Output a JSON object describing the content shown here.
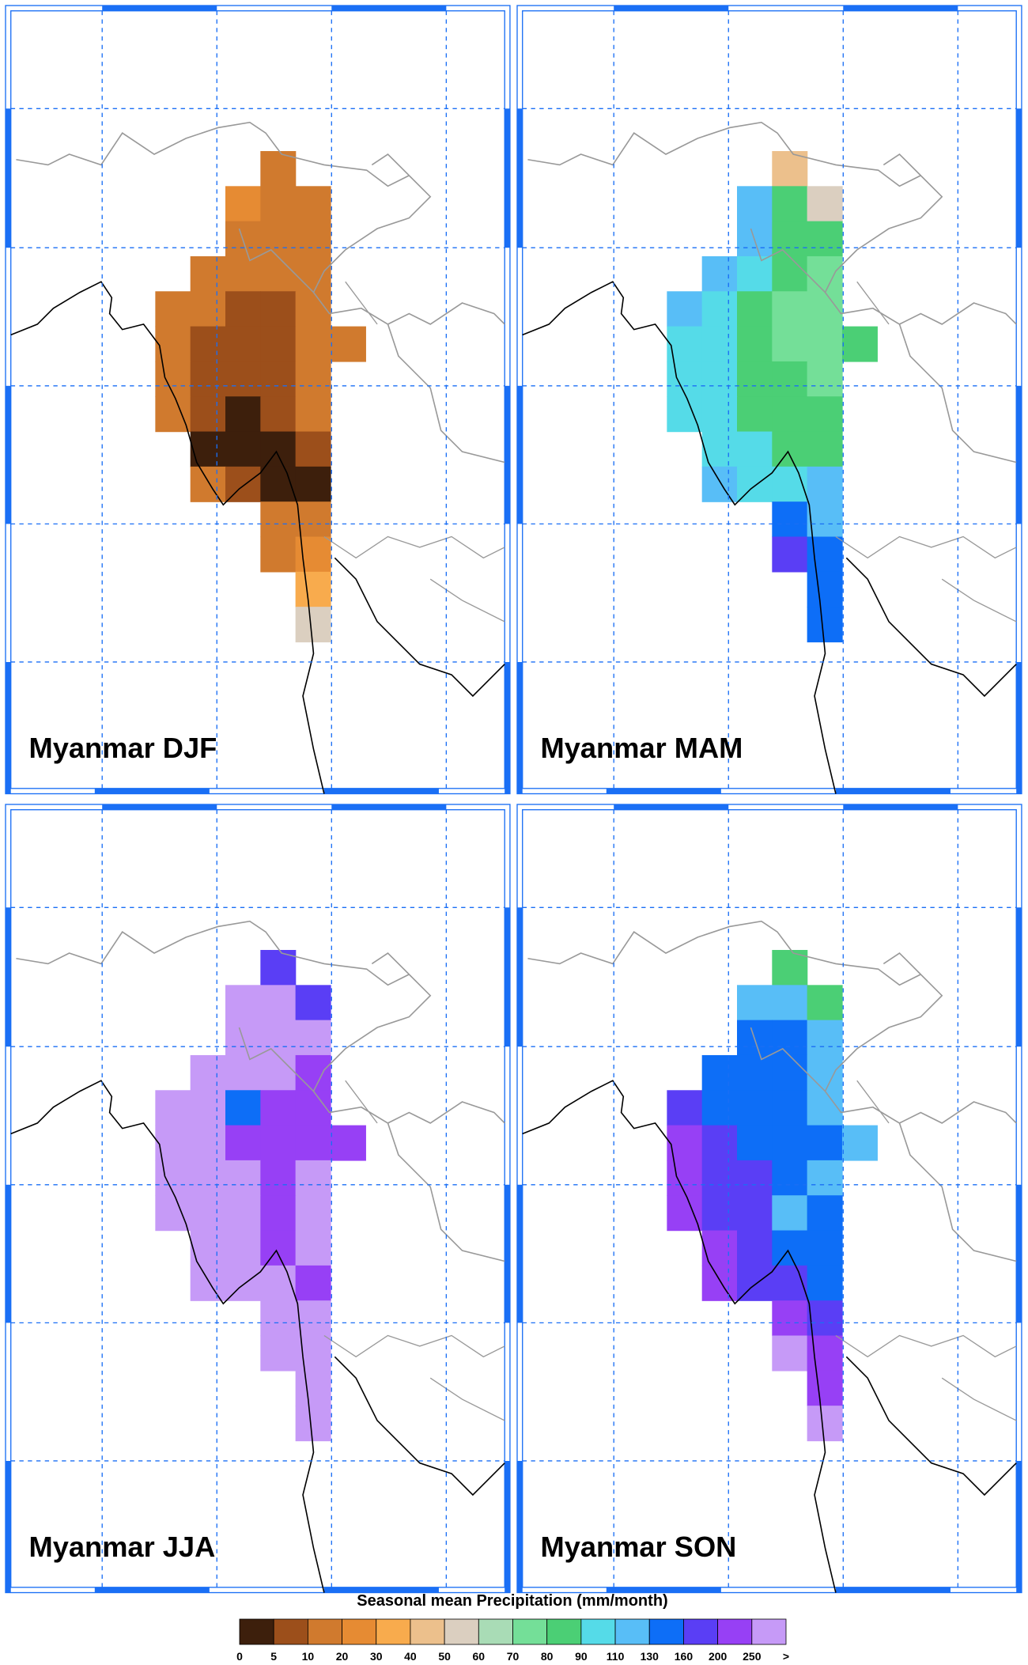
{
  "panels": [
    {
      "title": "Myanmar DJF",
      "cells": [
        [
          null,
          null,
          null,
          15,
          null,
          null
        ],
        [
          null,
          null,
          25,
          15,
          15,
          null
        ],
        [
          null,
          null,
          15,
          15,
          15,
          null
        ],
        [
          null,
          15,
          15,
          15,
          15,
          null
        ],
        [
          15,
          15,
          7,
          7,
          15,
          null
        ],
        [
          15,
          7,
          7,
          7,
          15,
          15
        ],
        [
          15,
          7,
          7,
          7,
          15,
          null
        ],
        [
          15,
          7,
          3,
          7,
          15,
          null
        ],
        [
          null,
          3,
          3,
          3,
          7,
          null
        ],
        [
          null,
          15,
          7,
          3,
          3,
          null
        ],
        [
          null,
          null,
          null,
          15,
          15,
          null
        ],
        [
          null,
          null,
          null,
          15,
          25,
          null
        ],
        [
          null,
          null,
          null,
          null,
          35,
          null
        ],
        [
          null,
          null,
          null,
          null,
          55,
          null
        ]
      ]
    },
    {
      "title": "Myanmar MAM",
      "cells": [
        [
          null,
          null,
          null,
          45,
          null,
          null
        ],
        [
          null,
          null,
          120,
          85,
          55,
          null
        ],
        [
          null,
          null,
          120,
          85,
          85,
          null
        ],
        [
          null,
          120,
          100,
          85,
          75,
          null
        ],
        [
          120,
          100,
          85,
          75,
          75,
          null
        ],
        [
          100,
          100,
          85,
          75,
          75,
          85
        ],
        [
          100,
          100,
          85,
          85,
          75,
          null
        ],
        [
          100,
          100,
          85,
          85,
          85,
          null
        ],
        [
          null,
          100,
          100,
          85,
          85,
          null
        ],
        [
          null,
          120,
          100,
          100,
          110,
          null
        ],
        [
          null,
          null,
          null,
          140,
          120,
          null
        ],
        [
          null,
          null,
          null,
          180,
          140,
          null
        ],
        [
          null,
          null,
          null,
          null,
          140,
          null
        ],
        [
          null,
          null,
          null,
          null,
          140,
          null
        ]
      ]
    },
    {
      "title": "Myanmar JJA",
      "cells": [
        [
          null,
          null,
          null,
          180,
          null,
          null
        ],
        [
          null,
          null,
          300,
          300,
          180,
          null
        ],
        [
          null,
          null,
          300,
          300,
          300,
          null
        ],
        [
          null,
          300,
          300,
          300,
          220,
          null
        ],
        [
          300,
          300,
          140,
          220,
          220,
          null
        ],
        [
          300,
          300,
          220,
          220,
          220,
          220
        ],
        [
          300,
          300,
          300,
          220,
          300,
          null
        ],
        [
          300,
          300,
          300,
          220,
          300,
          null
        ],
        [
          null,
          300,
          300,
          220,
          300,
          null
        ],
        [
          null,
          300,
          300,
          300,
          220,
          null
        ],
        [
          null,
          null,
          null,
          300,
          300,
          null
        ],
        [
          null,
          null,
          null,
          300,
          300,
          null
        ],
        [
          null,
          null,
          null,
          null,
          300,
          null
        ],
        [
          null,
          null,
          null,
          null,
          300,
          null
        ]
      ]
    },
    {
      "title": "Myanmar SON",
      "cells": [
        [
          null,
          null,
          null,
          85,
          null,
          null
        ],
        [
          null,
          null,
          120,
          120,
          85,
          null
        ],
        [
          null,
          null,
          145,
          145,
          120,
          null
        ],
        [
          null,
          145,
          145,
          145,
          120,
          null
        ],
        [
          180,
          145,
          145,
          145,
          120,
          null
        ],
        [
          220,
          180,
          145,
          145,
          145,
          120
        ],
        [
          220,
          180,
          180,
          145,
          120,
          null
        ],
        [
          220,
          180,
          180,
          120,
          145,
          null
        ],
        [
          null,
          220,
          180,
          145,
          145,
          null
        ],
        [
          null,
          220,
          180,
          180,
          145,
          null
        ],
        [
          null,
          null,
          null,
          220,
          180,
          null
        ],
        [
          null,
          null,
          null,
          300,
          220,
          null
        ],
        [
          null,
          null,
          null,
          null,
          220,
          null
        ],
        [
          null,
          null,
          null,
          null,
          300,
          null
        ]
      ]
    }
  ],
  "colorbar": {
    "title": "Seasonal mean Precipitation (mm/month)",
    "levels": [
      0,
      5,
      10,
      20,
      30,
      40,
      50,
      60,
      70,
      80,
      90,
      110,
      130,
      160,
      200,
      250
    ],
    "end_label": ">",
    "colors": [
      "#3d1f0c",
      "#9c4f1b",
      "#d07a2e",
      "#e68b33",
      "#f8ab4d",
      "#ecc08c",
      "#dbcfc0",
      "#a9dcb6",
      "#74df98",
      "#4bcf75",
      "#55dbe8",
      "#58bef7",
      "#0d6ef7",
      "#5a3ef5",
      "#9740f5",
      "#c69af7"
    ]
  }
}
